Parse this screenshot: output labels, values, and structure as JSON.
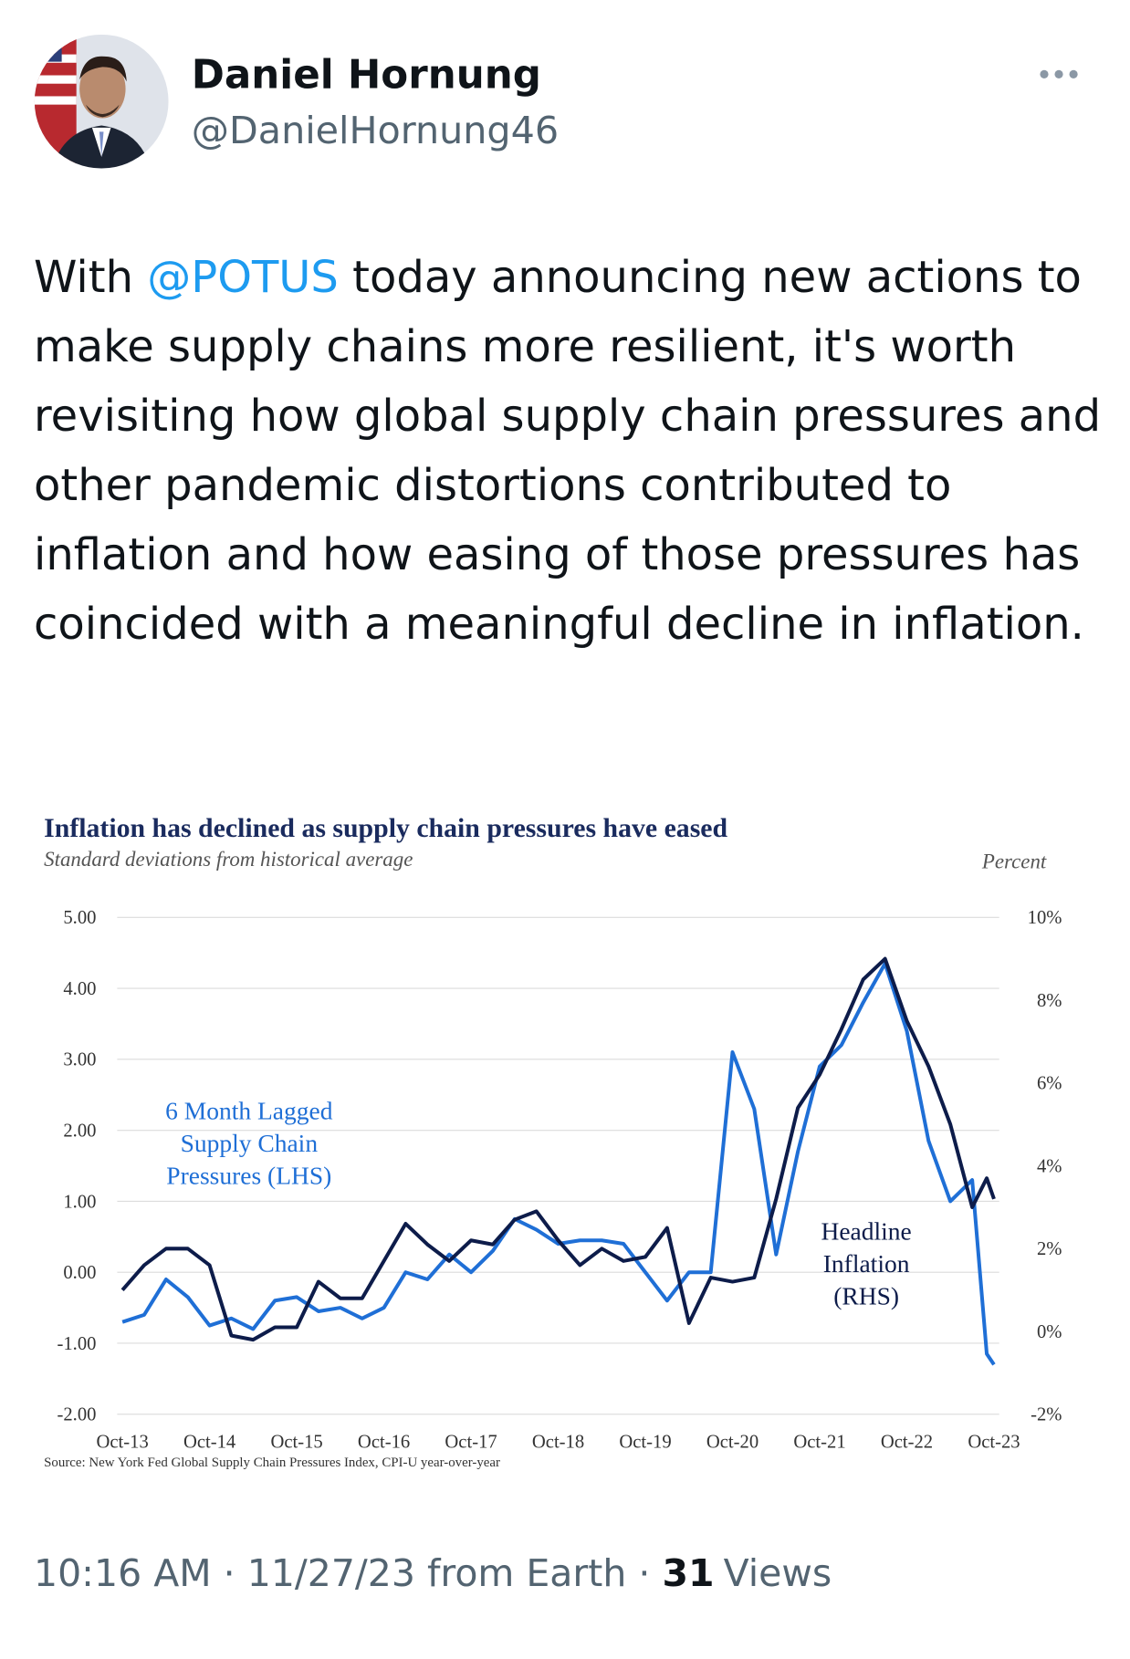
{
  "author": {
    "name": "Daniel Hornung",
    "handle": "@DanielHornung46"
  },
  "text": [
    "With ",
    "@POTUS",
    " today announcing new actions to make supply chains more resilient, it's worth revisiting how global supply chain pressures and other pandemic distortions contributed to inflation and how easing of those pressures has coincided with a meaningful decline in inflation."
  ],
  "chart_data": {
    "type": "line",
    "title": "Inflation has declined as supply chain pressures have eased",
    "subtitle": "Standard deviations from historical average",
    "y2_label": "Percent",
    "source": "Source: New York Fed Global Supply Chain Pressures Index, CPI-U year-over-year",
    "x": [
      "2013-10",
      "2014-01",
      "2014-04",
      "2014-07",
      "2014-10",
      "2015-01",
      "2015-04",
      "2015-07",
      "2015-10",
      "2016-01",
      "2016-04",
      "2016-07",
      "2016-10",
      "2017-01",
      "2017-04",
      "2017-07",
      "2017-10",
      "2018-01",
      "2018-04",
      "2018-07",
      "2018-10",
      "2019-01",
      "2019-04",
      "2019-07",
      "2019-10",
      "2020-01",
      "2020-04",
      "2020-07",
      "2020-10",
      "2021-01",
      "2021-04",
      "2021-07",
      "2021-10",
      "2022-01",
      "2022-04",
      "2022-07",
      "2022-10",
      "2023-01",
      "2023-04",
      "2023-07",
      "2023-09",
      "2023-10"
    ],
    "xlim": [
      "2013-10",
      "2023-10"
    ],
    "xticks": [
      {
        "value": "2013-10",
        "label": "Oct-13"
      },
      {
        "value": "2014-10",
        "label": "Oct-14"
      },
      {
        "value": "2015-10",
        "label": "Oct-15"
      },
      {
        "value": "2016-10",
        "label": "Oct-16"
      },
      {
        "value": "2017-10",
        "label": "Oct-17"
      },
      {
        "value": "2018-10",
        "label": "Oct-18"
      },
      {
        "value": "2019-10",
        "label": "Oct-19"
      },
      {
        "value": "2020-10",
        "label": "Oct-20"
      },
      {
        "value": "2021-10",
        "label": "Oct-21"
      },
      {
        "value": "2022-10",
        "label": "Oct-22"
      },
      {
        "value": "2023-10",
        "label": "Oct-23"
      }
    ],
    "ylim": [
      -2,
      5
    ],
    "yticks": [
      {
        "value": 5,
        "label": "5.00"
      },
      {
        "value": 4,
        "label": "4.00"
      },
      {
        "value": 3,
        "label": "3.00"
      },
      {
        "value": 2,
        "label": "2.00"
      },
      {
        "value": 1,
        "label": "1.00"
      },
      {
        "value": 0,
        "label": "0.00"
      },
      {
        "value": -1,
        "label": "-1.00"
      },
      {
        "value": -2,
        "label": "-2.00"
      }
    ],
    "y2lim": [
      -2,
      10
    ],
    "y2ticks": [
      {
        "value": 10,
        "label": "10%"
      },
      {
        "value": 8,
        "label": "8%"
      },
      {
        "value": 6,
        "label": "6%"
      },
      {
        "value": 4,
        "label": "4%"
      },
      {
        "value": 2,
        "label": "2%"
      },
      {
        "value": 0,
        "label": "0%"
      },
      {
        "value": -2,
        "label": "-2%"
      }
    ],
    "grid": true,
    "series": [
      {
        "name": [
          "6 Month Lagged",
          "Supply Chain",
          "Pressures (LHS)"
        ],
        "color": "#1f6fd6",
        "axis": "y",
        "values": [
          -0.7,
          -0.6,
          -0.1,
          -0.35,
          -0.75,
          -0.65,
          -0.8,
          -0.4,
          -0.35,
          -0.55,
          -0.5,
          -0.65,
          -0.5,
          0.0,
          -0.1,
          0.25,
          0.0,
          0.3,
          0.75,
          0.6,
          0.4,
          0.45,
          0.45,
          0.4,
          0.0,
          -0.4,
          0.0,
          0.0,
          3.1,
          2.3,
          0.25,
          1.7,
          2.9,
          3.2,
          3.8,
          4.35,
          3.4,
          1.85,
          1.0,
          1.3,
          -1.15,
          -1.3
        ]
      },
      {
        "name": [
          "Headline",
          "Inflation",
          "(RHS)"
        ],
        "color": "#0d1c4a",
        "axis": "y2",
        "values": [
          1.0,
          1.6,
          2.0,
          2.0,
          1.6,
          -0.1,
          -0.2,
          0.1,
          0.1,
          1.2,
          0.8,
          0.8,
          1.7,
          2.6,
          2.1,
          1.7,
          2.2,
          2.1,
          2.7,
          2.9,
          2.2,
          1.6,
          2.0,
          1.7,
          1.8,
          2.5,
          0.2,
          1.3,
          1.2,
          1.3,
          3.2,
          5.4,
          6.2,
          7.3,
          8.5,
          9.0,
          7.5,
          6.4,
          5.0,
          3.0,
          3.7,
          3.2
        ]
      }
    ]
  },
  "footer": {
    "time": "10:16 AM",
    "separator": "·",
    "date": "11/27/23",
    "source": "from Earth",
    "views_count": 31,
    "views_label": "Views"
  }
}
